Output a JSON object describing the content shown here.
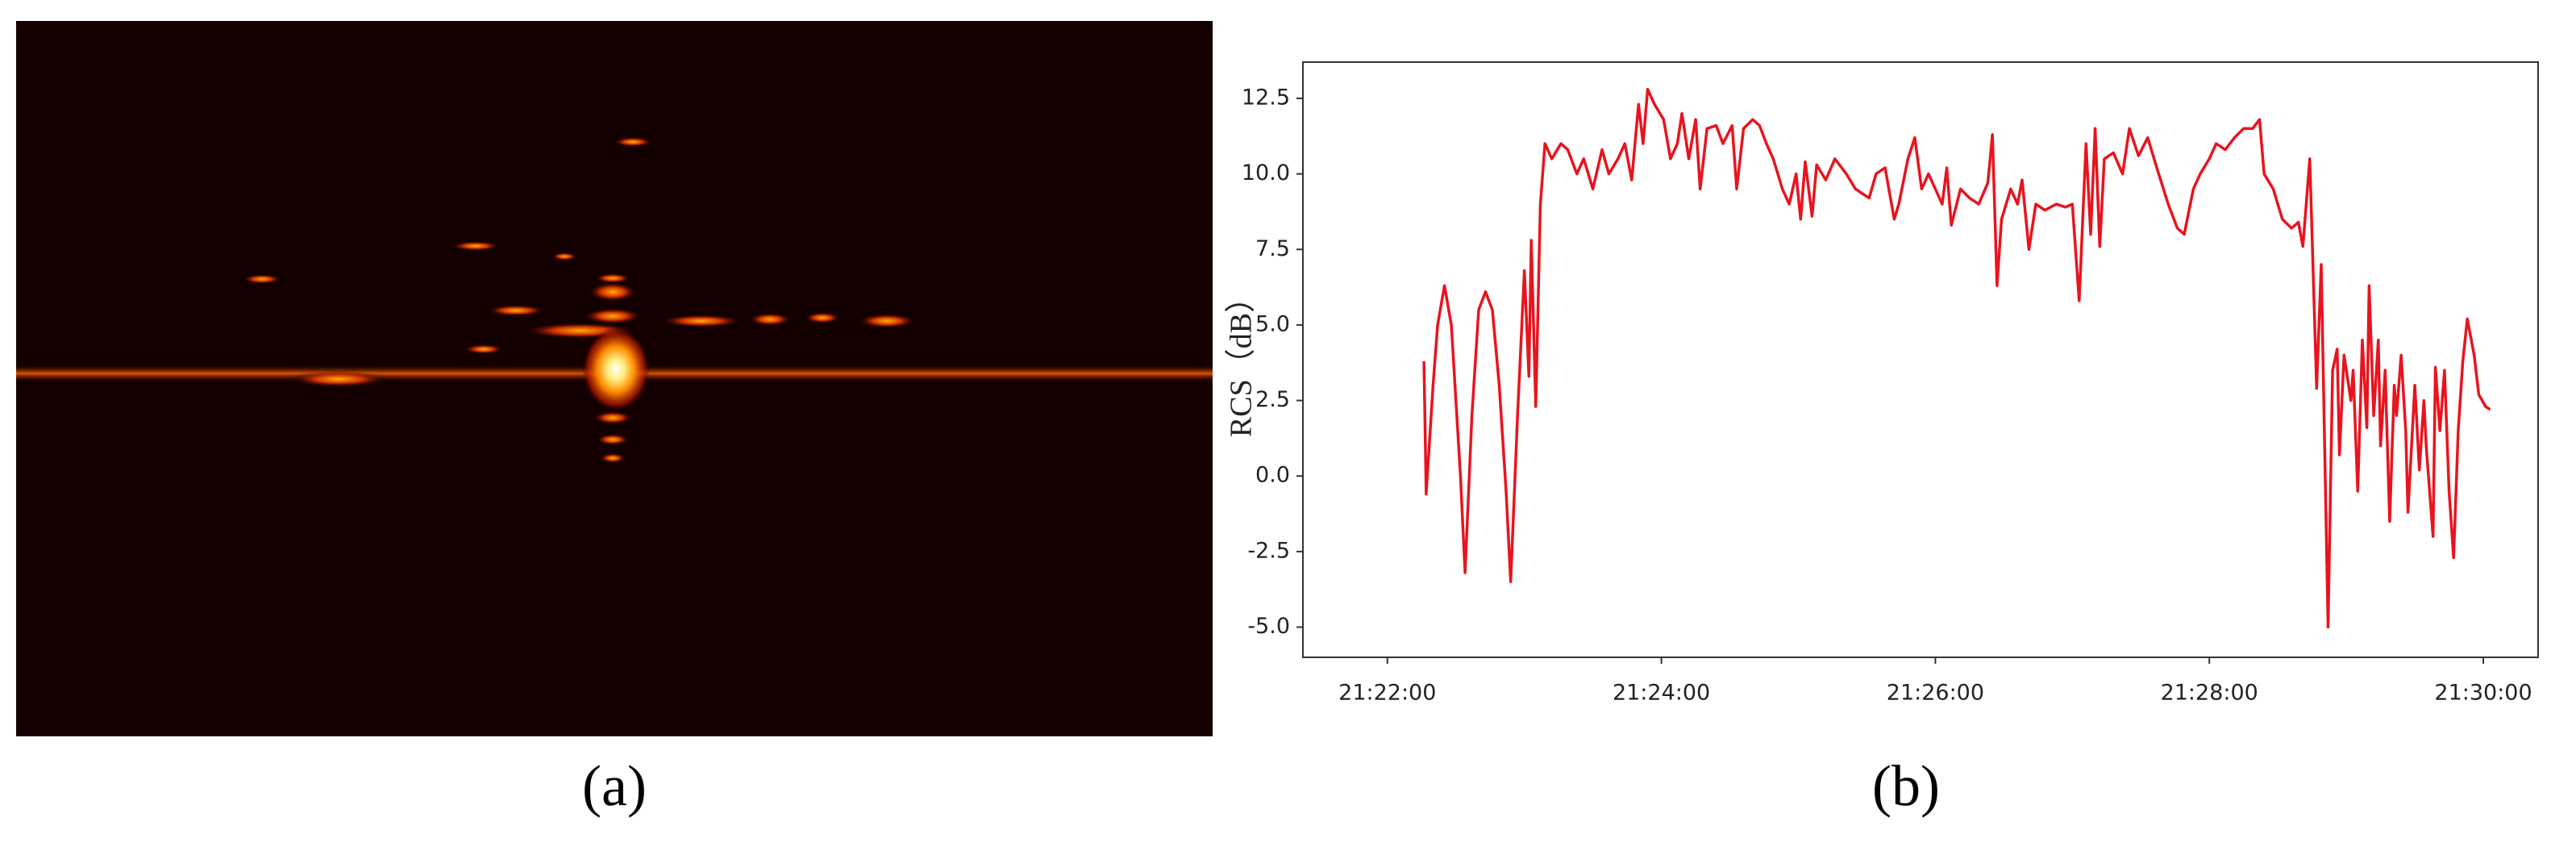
{
  "panel_labels": [
    "(a)",
    "(b)"
  ],
  "chart_data": {
    "type": "line",
    "ylabel": "RCS（dB）",
    "x": [
      "21:22:16",
      "21:22:17",
      "21:22:20",
      "21:22:22",
      "21:22:25",
      "21:22:28",
      "21:22:32",
      "21:22:34",
      "21:22:37",
      "21:22:40",
      "21:22:43",
      "21:22:46",
      "21:22:49",
      "21:22:52",
      "21:22:54",
      "21:22:57",
      "21:23:00",
      "21:23:02",
      "21:23:03",
      "21:23:05",
      "21:23:07",
      "21:23:09",
      "21:23:12",
      "21:23:16",
      "21:23:19",
      "21:23:23",
      "21:23:26",
      "21:23:30",
      "21:23:34",
      "21:23:37",
      "21:23:41",
      "21:23:44",
      "21:23:47",
      "21:23:50",
      "21:23:52",
      "21:23:54",
      "21:23:57",
      "21:24:01",
      "21:24:04",
      "21:24:07",
      "21:24:09",
      "21:24:12",
      "21:24:15",
      "21:24:17",
      "21:24:20",
      "21:24:24",
      "21:24:27",
      "21:24:31",
      "21:24:33",
      "21:24:36",
      "21:24:40",
      "21:24:43",
      "21:24:46",
      "21:24:49",
      "21:24:53",
      "21:24:56",
      "21:24:59",
      "21:25:01",
      "21:25:03",
      "21:25:06",
      "21:25:08",
      "21:25:12",
      "21:25:16",
      "21:25:21",
      "21:25:25",
      "21:25:31",
      "21:25:34",
      "21:25:38",
      "21:25:42",
      "21:25:44",
      "21:25:48",
      "21:25:51",
      "21:25:54",
      "21:25:57",
      "21:26:00",
      "21:26:03",
      "21:26:05",
      "21:26:07",
      "21:26:11",
      "21:26:15",
      "21:26:19",
      "21:26:23",
      "21:26:25",
      "21:26:27",
      "21:26:29",
      "21:26:33",
      "21:26:36",
      "21:26:38",
      "21:26:41",
      "21:26:44",
      "21:26:48",
      "21:26:53",
      "21:26:57",
      "21:27:00",
      "21:27:03",
      "21:27:06",
      "21:27:08",
      "21:27:10",
      "21:27:12",
      "21:27:14",
      "21:27:18",
      "21:27:22",
      "21:27:25",
      "21:27:29",
      "21:27:33",
      "21:27:37",
      "21:27:42",
      "21:27:46",
      "21:27:49",
      "21:27:53",
      "21:27:56",
      "21:28:00",
      "21:28:03",
      "21:28:07",
      "21:28:11",
      "21:28:15",
      "21:28:19",
      "21:28:22",
      "21:28:24",
      "21:28:28",
      "21:28:32",
      "21:28:36",
      "21:28:39",
      "21:28:41",
      "21:28:44",
      "21:28:47",
      "21:28:49",
      "21:28:52",
      "21:28:54",
      "21:28:56",
      "21:28:57",
      "21:28:59",
      "21:29:02",
      "21:29:03",
      "21:29:05",
      "21:29:07",
      "21:29:09",
      "21:29:10",
      "21:29:12",
      "21:29:14",
      "21:29:15",
      "21:29:17",
      "21:29:19",
      "21:29:21",
      "21:29:22",
      "21:29:24",
      "21:29:26",
      "21:29:27",
      "21:29:30",
      "21:29:32",
      "21:29:34",
      "21:29:35",
      "21:29:38",
      "21:29:39",
      "21:29:41",
      "21:29:43",
      "21:29:45",
      "21:29:47",
      "21:29:49",
      "21:29:51",
      "21:29:53",
      "21:29:56",
      "21:29:58",
      "21:30:01",
      "21:30:03"
    ],
    "series": [
      {
        "color": "#e8141e",
        "values": [
          3.8,
          -0.6,
          3,
          5,
          6.3,
          5,
          0,
          -3.2,
          2,
          5.5,
          6.1,
          5.5,
          3,
          -0.5,
          -3.5,
          2,
          6.8,
          3.3,
          7.8,
          2.3,
          9,
          11,
          10.5,
          11,
          10.8,
          10,
          10.5,
          9.5,
          10.8,
          10,
          10.5,
          11,
          9.8,
          12.3,
          11,
          12.8,
          12.3,
          11.8,
          10.5,
          11,
          12,
          10.5,
          11.8,
          9.5,
          11.5,
          11.6,
          11,
          11.6,
          9.5,
          11.5,
          11.8,
          11.6,
          11,
          10.5,
          9.5,
          9,
          10,
          8.5,
          10.4,
          8.6,
          10.3,
          9.8,
          10.5,
          10,
          9.5,
          9.2,
          10,
          10.2,
          8.5,
          9,
          10.5,
          11.2,
          9.5,
          10,
          9.5,
          9,
          10.2,
          8.3,
          9.5,
          9.2,
          9,
          9.7,
          11.3,
          6.3,
          8.5,
          9.5,
          9,
          9.8,
          7.5,
          9,
          8.8,
          9,
          8.9,
          9,
          5.8,
          11,
          8,
          11.5,
          7.6,
          10.5,
          10.7,
          10,
          11.5,
          10.6,
          11.2,
          10.2,
          9,
          8.2,
          8,
          9.5,
          10,
          10.5,
          11,
          10.8,
          11.2,
          11.5,
          11.5,
          11.8,
          10,
          9.5,
          8.5,
          8.2,
          8.4,
          7.6,
          10.5,
          2.9,
          7,
          -5.0,
          3.5,
          4.2,
          0.7,
          4,
          2.5,
          3.5,
          -0.5,
          4.5,
          1.6,
          6.3,
          2,
          4.5,
          1,
          3.5,
          -1.5,
          3,
          2,
          4,
          1.5,
          -1.2,
          3,
          0.2,
          2.5,
          1,
          -2,
          3.6,
          1.5,
          3.5,
          -0.5,
          -2.7,
          1.5,
          3.8,
          5.2,
          4,
          2.7,
          2.3,
          2.2
        ]
      }
    ],
    "xlim": [
      "21:21:23",
      "21:30:24"
    ],
    "xticks": [
      "21:22:00",
      "21:24:00",
      "21:26:00",
      "21:28:00",
      "21:30:00"
    ],
    "ylim": [
      -6.0,
      13.7
    ],
    "yticks": [
      {
        "value": -5,
        "label": "-5.0"
      },
      -2.5,
      {
        "value": 0,
        "label": "0.0"
      },
      2.5,
      {
        "value": 5,
        "label": "5.0"
      },
      7.5,
      {
        "value": 10,
        "label": "10.0"
      },
      12.5
    ],
    "grid": false
  }
}
